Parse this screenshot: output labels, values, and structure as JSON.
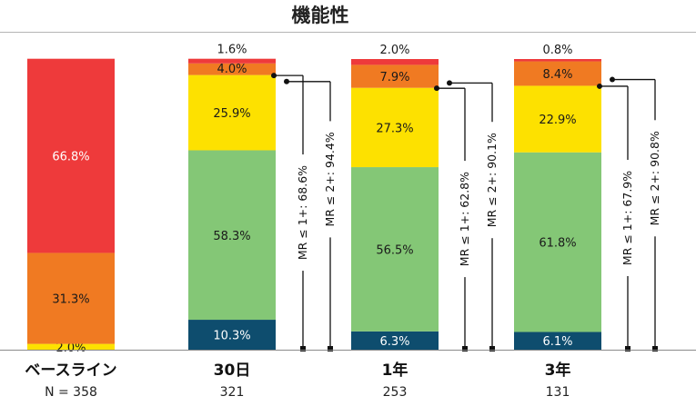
{
  "chart_data": {
    "type": "bar",
    "stacked": true,
    "title": "機能性",
    "categories": [
      "ベースライン",
      "30日",
      "1年",
      "3年"
    ],
    "n_labels": [
      "N = 358",
      "321",
      "253",
      "131"
    ],
    "colors": [
      "#0e4d6e",
      "#84c776",
      "#fde100",
      "#f07a22",
      "#ee3a3b"
    ],
    "series": [
      {
        "values": [
          0,
          10.3,
          6.3,
          6.1
        ]
      },
      {
        "values": [
          0,
          58.3,
          56.5,
          61.8
        ]
      },
      {
        "values": [
          2.0,
          25.9,
          27.3,
          22.9
        ]
      },
      {
        "values": [
          31.3,
          4.0,
          7.9,
          8.4
        ]
      },
      {
        "values": [
          66.8,
          1.6,
          2.0,
          0.8
        ]
      }
    ],
    "brackets": [
      {
        "category": "30日",
        "mr1": "MR ≤ 1+: 68.6%",
        "mr2": "MR ≤ 2+: 94.4%"
      },
      {
        "category": "1年",
        "mr1": "MR ≤ 1+: 62.8%",
        "mr2": "MR ≤ 2+: 90.1%"
      },
      {
        "category": "3年",
        "mr1": "MR ≤ 1+: 67.9%",
        "mr2": "MR ≤ 2+: 90.8%"
      }
    ],
    "ylim": [
      0,
      100
    ]
  }
}
